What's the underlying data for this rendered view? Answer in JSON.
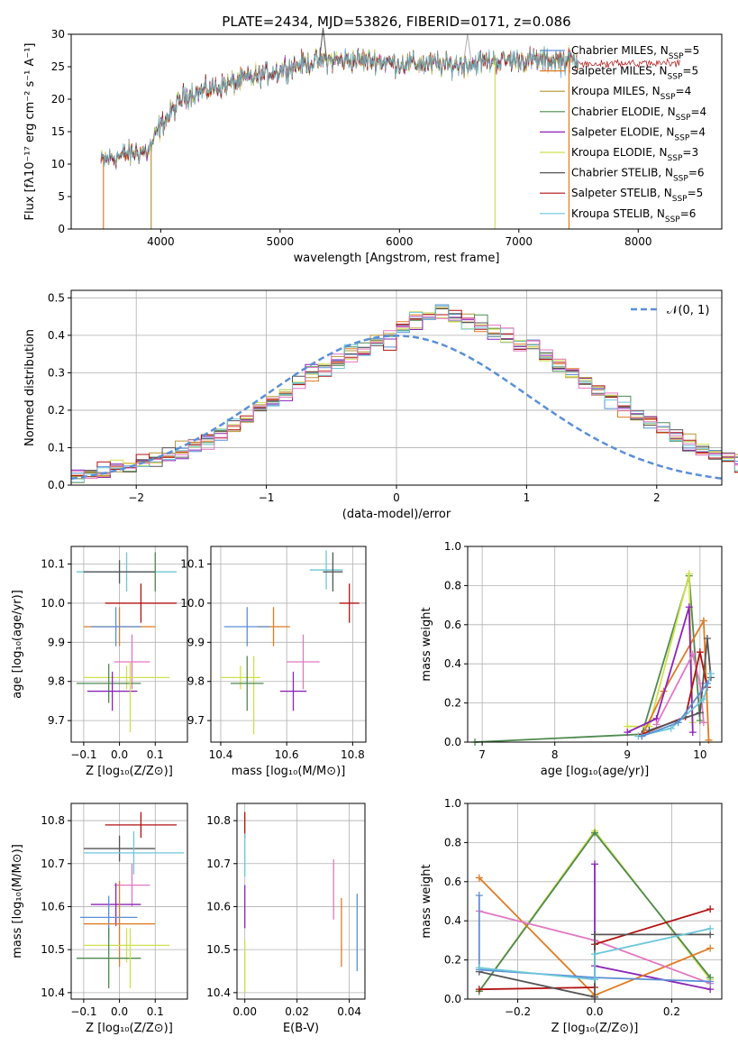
{
  "colors": {
    "chabrier_miles": "#5a8fd6",
    "salpeter_miles": "#e07b23",
    "kroupa_miles": "#b79632",
    "chabrier_elodie": "#4f8a4f",
    "salpeter_elodie": "#8b24b8",
    "kroupa_elodie": "#cfe04d",
    "chabrier_stelib": "#555555",
    "salpeter_stelib": "#b21111",
    "kroupa_stelib": "#6cc7d8",
    "pink": "#e377c2",
    "normal_curve": "#5a8fd6",
    "grid": "#b0b0b0"
  },
  "chart_data": [
    {
      "id": "spectrum",
      "type": "line",
      "title": "PLATE=2434, MJD=53826, FIBERID=0171, z=0.086",
      "xlabel": "wavelength [Angstrom, rest frame]",
      "ylabel": "Flux [fλ10⁻¹⁷ erg cm⁻² s⁻¹ A⁻¹]",
      "xlim": [
        3250,
        8700
      ],
      "ylim": [
        0,
        30
      ],
      "xticks": [
        4000,
        5000,
        6000,
        7000,
        8000
      ],
      "yticks": [
        0,
        5,
        10,
        15,
        20,
        25,
        30
      ],
      "grid": false,
      "legend_position": "top-right",
      "legend": [
        {
          "main": "Chabrier MILES, N",
          "sub": "SSP",
          "tail": "=5",
          "color_key": "chabrier_miles"
        },
        {
          "main": "Salpeter MILES, N",
          "sub": "SSP",
          "tail": "=5",
          "color_key": "salpeter_miles"
        },
        {
          "main": "Kroupa MILES, N",
          "sub": "SSP",
          "tail": "=4",
          "color_key": "kroupa_miles"
        },
        {
          "main": "Chabrier ELODIE, N",
          "sub": "SSP",
          "tail": "=4",
          "color_key": "chabrier_elodie"
        },
        {
          "main": "Salpeter ELODIE, N",
          "sub": "SSP",
          "tail": "=4",
          "color_key": "salpeter_elodie"
        },
        {
          "main": "Kroupa ELODIE, N",
          "sub": "SSP",
          "tail": "=3",
          "color_key": "kroupa_elodie"
        },
        {
          "main": "Chabrier STELIB, N",
          "sub": "SSP",
          "tail": "=6",
          "color_key": "chabrier_stelib"
        },
        {
          "main": "Salpeter STELIB, N",
          "sub": "SSP",
          "tail": "=5",
          "color_key": "salpeter_stelib"
        },
        {
          "main": "Kroupa STELIB, N",
          "sub": "SSP",
          "tail": "=6",
          "color_key": "kroupa_stelib"
        }
      ],
      "continuum": {
        "x": [
          3500,
          3700,
          3900,
          4000,
          4200,
          4400,
          4600,
          4800,
          5000,
          5200,
          5400,
          5600,
          5800,
          6000,
          6200,
          6400,
          6600,
          6800,
          7000,
          7200,
          7400,
          7500
        ],
        "y": [
          10.5,
          11.5,
          12,
          16,
          20.5,
          21.5,
          22.5,
          23.5,
          24.5,
          25.5,
          26,
          26,
          26,
          25.5,
          25.5,
          25.2,
          25.5,
          26,
          26,
          26,
          26,
          25.8
        ]
      },
      "drop_lines": [
        {
          "x": 3520,
          "color_key": "salpeter_miles"
        },
        {
          "x": 3920,
          "color_key": "kroupa_miles"
        },
        {
          "x": 6800,
          "color_key": "kroupa_elodie"
        },
        {
          "x": 7420,
          "color_key": "salpeter_miles"
        }
      ],
      "emission_peaks": [
        {
          "x": 5360,
          "y": 31,
          "color_key": "chabrier_stelib"
        },
        {
          "x": 6570,
          "y": 30,
          "color_key": "grid"
        }
      ]
    },
    {
      "id": "residuals",
      "type": "histogram",
      "xlabel": "(data-model)/error",
      "ylabel": "Normed distribution",
      "xlim": [
        -2.5,
        2.5
      ],
      "ylim": [
        0,
        0.52
      ],
      "xticks": [
        -2,
        -1,
        0,
        1,
        2
      ],
      "yticks": [
        0.0,
        0.1,
        0.2,
        0.3,
        0.4,
        0.5
      ],
      "grid": true,
      "legend_position": "top-right",
      "legend_label": "𝒩(0, 1)",
      "bin_width": 0.1,
      "bin_start": -2.5,
      "envelope": [
        0.03,
        0.03,
        0.04,
        0.05,
        0.05,
        0.06,
        0.07,
        0.08,
        0.09,
        0.11,
        0.12,
        0.14,
        0.16,
        0.18,
        0.21,
        0.23,
        0.25,
        0.27,
        0.3,
        0.31,
        0.33,
        0.35,
        0.36,
        0.38,
        0.39,
        0.42,
        0.44,
        0.45,
        0.46,
        0.45,
        0.44,
        0.43,
        0.41,
        0.4,
        0.38,
        0.37,
        0.34,
        0.32,
        0.3,
        0.27,
        0.25,
        0.23,
        0.21,
        0.18,
        0.17,
        0.15,
        0.13,
        0.11,
        0.1,
        0.08,
        0.07,
        0.06,
        0.05,
        0.04,
        0.04,
        0.03,
        0.03,
        0.02,
        0.02,
        0.02
      ],
      "series_colors": [
        "chabrier_miles",
        "salpeter_miles",
        "kroupa_miles",
        "chabrier_elodie",
        "salpeter_elodie",
        "kroupa_elodie",
        "chabrier_stelib",
        "salpeter_stelib",
        "kroupa_stelib",
        "pink"
      ]
    },
    {
      "id": "age_vs_z",
      "type": "errorbar",
      "xlabel": "Z [log₁₀(Z/Z⊙)]",
      "ylabel": "age  [log₁₀(age/yr)]",
      "xlim": [
        -0.135,
        0.19
      ],
      "ylim": [
        9.645,
        10.145
      ],
      "xticks": [
        -0.1,
        0.0,
        0.1
      ],
      "yticks": [
        9.7,
        9.8,
        9.9,
        10.0,
        10.1
      ],
      "grid": true,
      "points": [
        {
          "x": 0.02,
          "xerr": 0.14,
          "y": 10.08,
          "yerr": 0.05,
          "color_key": "kroupa_stelib"
        },
        {
          "x": 0.0,
          "xerr": 0.1,
          "y": 10.08,
          "yerr": 0.03,
          "color_key": "chabrier_stelib"
        },
        {
          "x": 0.1,
          "xerr": 0.0,
          "y": 10.08,
          "yerr": 0.05,
          "color_key": "chabrier_elodie"
        },
        {
          "x": 0.06,
          "xerr": 0.1,
          "y": 10.0,
          "yerr": 0.05,
          "color_key": "salpeter_stelib"
        },
        {
          "x": 0.0,
          "xerr": 0.1,
          "y": 9.94,
          "yerr": 0.05,
          "color_key": "salpeter_miles"
        },
        {
          "x": -0.01,
          "xerr": 0.07,
          "y": 9.94,
          "yerr": 0.05,
          "color_key": "chabrier_miles"
        },
        {
          "x": 0.035,
          "xerr": 0.05,
          "y": 9.85,
          "yerr": 0.07,
          "color_key": "pink"
        },
        {
          "x": 0.02,
          "xerr": 0.12,
          "y": 9.81,
          "yerr": 0.03,
          "color_key": "kroupa_elodie"
        },
        {
          "x": -0.03,
          "xerr": 0.09,
          "y": 9.795,
          "yerr": 0.05,
          "color_key": "chabrier_elodie"
        },
        {
          "x": -0.02,
          "xerr": 0.07,
          "y": 9.775,
          "yerr": 0.05,
          "color_key": "salpeter_elodie"
        },
        {
          "x": 0.03,
          "xerr": 0.0,
          "y": 9.76,
          "yerr": 0.09,
          "color_key": "kroupa_elodie"
        }
      ]
    },
    {
      "id": "age_vs_mass",
      "type": "errorbar",
      "xlabel": "mass [log₁₀(M/M⊙)]",
      "ylabel": "",
      "xlim": [
        10.37,
        10.84
      ],
      "ylim": [
        9.645,
        10.145
      ],
      "xticks": [
        10.4,
        10.6,
        10.8
      ],
      "yticks": [
        9.7,
        9.8,
        9.9,
        10.0,
        10.1
      ],
      "grid": true,
      "points": [
        {
          "x": 10.72,
          "xerr": 0.05,
          "y": 10.085,
          "yerr": 0.05,
          "color_key": "kroupa_stelib"
        },
        {
          "x": 10.74,
          "xerr": 0.03,
          "y": 10.08,
          "yerr": 0.05,
          "color_key": "chabrier_stelib"
        },
        {
          "x": 10.79,
          "xerr": 0.03,
          "y": 10.0,
          "yerr": 0.05,
          "color_key": "salpeter_stelib"
        },
        {
          "x": 10.56,
          "xerr": 0.05,
          "y": 9.94,
          "yerr": 0.05,
          "color_key": "salpeter_miles"
        },
        {
          "x": 10.48,
          "xerr": 0.07,
          "y": 9.94,
          "yerr": 0.05,
          "color_key": "chabrier_miles"
        },
        {
          "x": 10.65,
          "xerr": 0.05,
          "y": 9.85,
          "yerr": 0.07,
          "color_key": "pink"
        },
        {
          "x": 10.46,
          "xerr": 0.06,
          "y": 9.81,
          "yerr": 0.03,
          "color_key": "kroupa_elodie"
        },
        {
          "x": 10.5,
          "xerr": 0.0,
          "y": 9.765,
          "yerr": 0.1,
          "color_key": "kroupa_elodie"
        },
        {
          "x": 10.48,
          "xerr": 0.05,
          "y": 9.795,
          "yerr": 0.07,
          "color_key": "chabrier_elodie"
        },
        {
          "x": 10.62,
          "xerr": 0.04,
          "y": 9.775,
          "yerr": 0.05,
          "color_key": "salpeter_elodie"
        }
      ]
    },
    {
      "id": "weight_vs_age",
      "type": "line",
      "xlabel": "age  [log₁₀(age/yr)]",
      "ylabel": "mass weight",
      "xlim": [
        6.8,
        10.3
      ],
      "ylim": [
        0,
        1.0
      ],
      "xticks": [
        7,
        8,
        9,
        10
      ],
      "yticks": [
        0.0,
        0.2,
        0.4,
        0.6,
        0.8,
        1.0
      ],
      "grid": true,
      "series": [
        {
          "color_key": "chabrier_elodie",
          "x": [
            6.9,
            9.2,
            9.85,
            10.0
          ],
          "y": [
            0.0,
            0.04,
            0.85,
            0.11
          ]
        },
        {
          "color_key": "kroupa_elodie",
          "x": [
            9.0,
            9.3,
            9.85,
            9.9
          ],
          "y": [
            0.08,
            0.08,
            0.86,
            0.1
          ]
        },
        {
          "color_key": "salpeter_miles",
          "x": [
            9.2,
            9.5,
            10.05,
            10.12
          ],
          "y": [
            0.03,
            0.26,
            0.62,
            0.01
          ]
        },
        {
          "color_key": "salpeter_elodie",
          "x": [
            9.0,
            9.4,
            9.85,
            9.9
          ],
          "y": [
            0.05,
            0.12,
            0.69,
            0.05
          ]
        },
        {
          "color_key": "pink",
          "x": [
            9.4,
            9.9,
            10.0,
            10.05
          ],
          "y": [
            0.09,
            0.45,
            0.3,
            0.1
          ]
        },
        {
          "color_key": "salpeter_stelib",
          "x": [
            9.2,
            9.8,
            10.0,
            10.1
          ],
          "y": [
            0.04,
            0.13,
            0.46,
            0.28
          ]
        },
        {
          "color_key": "chabrier_stelib",
          "x": [
            9.3,
            10.0,
            10.1,
            10.15
          ],
          "y": [
            0.06,
            0.15,
            0.53,
            0.33
          ]
        },
        {
          "color_key": "kroupa_stelib",
          "x": [
            9.15,
            9.6,
            10.05,
            10.15
          ],
          "y": [
            0.03,
            0.07,
            0.22,
            0.35
          ]
        },
        {
          "color_key": "chabrier_miles",
          "x": [
            9.2,
            9.7,
            10.1
          ],
          "y": [
            0.03,
            0.1,
            0.3
          ]
        }
      ]
    },
    {
      "id": "mass_vs_z",
      "type": "errorbar",
      "xlabel": "Z [log₁₀(Z/Z⊙)]",
      "ylabel": "mass [log₁₀(M/M⊙)]",
      "xlim": [
        -0.135,
        0.19
      ],
      "ylim": [
        10.385,
        10.84
      ],
      "xticks": [
        -0.1,
        0.0,
        0.1
      ],
      "yticks": [
        10.4,
        10.5,
        10.6,
        10.7,
        10.8
      ],
      "grid": true,
      "points": [
        {
          "x": 0.06,
          "xerr": 0.1,
          "y": 10.79,
          "yerr": 0.03,
          "color_key": "salpeter_stelib"
        },
        {
          "x": 0.0,
          "xerr": 0.1,
          "y": 10.735,
          "yerr": 0.03,
          "color_key": "chabrier_stelib"
        },
        {
          "x": 0.04,
          "xerr": 0.14,
          "y": 10.725,
          "yerr": 0.05,
          "color_key": "kroupa_stelib"
        },
        {
          "x": 0.035,
          "xerr": 0.05,
          "y": 10.65,
          "yerr": 0.05,
          "color_key": "pink"
        },
        {
          "x": -0.01,
          "xerr": 0.07,
          "y": 10.605,
          "yerr": 0.05,
          "color_key": "salpeter_elodie"
        },
        {
          "x": -0.03,
          "xerr": 0.08,
          "y": 10.575,
          "yerr": 0.05,
          "color_key": "chabrier_miles"
        },
        {
          "x": 0.0,
          "xerr": 0.1,
          "y": 10.56,
          "yerr": 0.1,
          "color_key": "salpeter_miles"
        },
        {
          "x": 0.02,
          "xerr": 0.12,
          "y": 10.51,
          "yerr": 0.04,
          "color_key": "kroupa_elodie"
        },
        {
          "x": -0.03,
          "xerr": 0.09,
          "y": 10.48,
          "yerr": 0.07,
          "color_key": "chabrier_elodie"
        },
        {
          "x": 0.03,
          "xerr": 0.0,
          "y": 10.48,
          "yerr": 0.07,
          "color_key": "kroupa_elodie"
        }
      ]
    },
    {
      "id": "mass_vs_ebv",
      "type": "errorbar",
      "xlabel": "E(B-V)",
      "ylabel": "",
      "xlim": [
        -0.003,
        0.046
      ],
      "ylim": [
        10.385,
        10.84
      ],
      "xticks": [
        0.0,
        0.02,
        0.04
      ],
      "yticks": [
        10.4,
        10.5,
        10.6,
        10.7,
        10.8
      ],
      "grid": true,
      "points": [
        {
          "x": 0.0,
          "xerr": 0.0,
          "y": 10.79,
          "yerr": 0.03,
          "color_key": "salpeter_stelib"
        },
        {
          "x": 0.0,
          "xerr": 0.0,
          "y": 10.72,
          "yerr": 0.05,
          "color_key": "kroupa_stelib"
        },
        {
          "x": 0.0,
          "xerr": 0.0,
          "y": 10.6,
          "yerr": 0.05,
          "color_key": "salpeter_elodie"
        },
        {
          "x": 0.0,
          "xerr": 0.0,
          "y": 10.46,
          "yerr": 0.06,
          "color_key": "kroupa_elodie"
        },
        {
          "x": 0.034,
          "xerr": 0.0,
          "y": 10.64,
          "yerr": 0.07,
          "color_key": "pink"
        },
        {
          "x": 0.037,
          "xerr": 0.0,
          "y": 10.54,
          "yerr": 0.08,
          "color_key": "salpeter_miles"
        },
        {
          "x": 0.043,
          "xerr": 0.0,
          "y": 10.54,
          "yerr": 0.09,
          "color_key": "chabrier_miles"
        }
      ]
    },
    {
      "id": "weight_vs_z",
      "type": "line",
      "xlabel": "Z [log₁₀(Z/Z⊙)]",
      "ylabel": "mass weight",
      "xlim": [
        -0.33,
        0.33
      ],
      "ylim": [
        0,
        1.0
      ],
      "xticks": [
        -0.2,
        0.0,
        0.2
      ],
      "yticks": [
        0.0,
        0.2,
        0.4,
        0.6,
        0.8,
        1.0
      ],
      "grid": true,
      "series": [
        {
          "color_key": "kroupa_elodie",
          "x": [
            -0.3,
            0.0,
            0.3
          ],
          "y": [
            0.04,
            0.86,
            0.1
          ]
        },
        {
          "color_key": "chabrier_elodie",
          "x": [
            -0.3,
            0.0,
            0.3
          ],
          "y": [
            0.04,
            0.85,
            0.11
          ]
        },
        {
          "color_key": "salpeter_elodie",
          "x": [
            0.0,
            0.0,
            0.3
          ],
          "y": [
            0.69,
            0.17,
            0.05
          ]
        },
        {
          "color_key": "salpeter_miles",
          "x": [
            -0.3,
            0.0,
            0.3
          ],
          "y": [
            0.62,
            0.02,
            0.26
          ]
        },
        {
          "color_key": "pink",
          "x": [
            -0.3,
            0.0,
            0.3
          ],
          "y": [
            0.45,
            0.3,
            0.08
          ]
        },
        {
          "color_key": "salpeter_stelib",
          "x": [
            -0.3,
            0.0,
            0.0,
            0.3
          ],
          "y": [
            0.05,
            0.06,
            0.28,
            0.46
          ]
        },
        {
          "color_key": "chabrier_miles",
          "x": [
            -0.3,
            -0.3,
            0.0,
            0.3
          ],
          "y": [
            0.53,
            0.15,
            0.11,
            0.09
          ]
        },
        {
          "color_key": "chabrier_stelib",
          "x": [
            -0.3,
            0.0,
            0.0,
            0.3
          ],
          "y": [
            0.14,
            0.01,
            0.33,
            0.33
          ]
        },
        {
          "color_key": "kroupa_stelib",
          "x": [
            -0.3,
            0.0,
            0.0,
            0.3
          ],
          "y": [
            0.16,
            0.1,
            0.23,
            0.36
          ]
        }
      ]
    }
  ]
}
